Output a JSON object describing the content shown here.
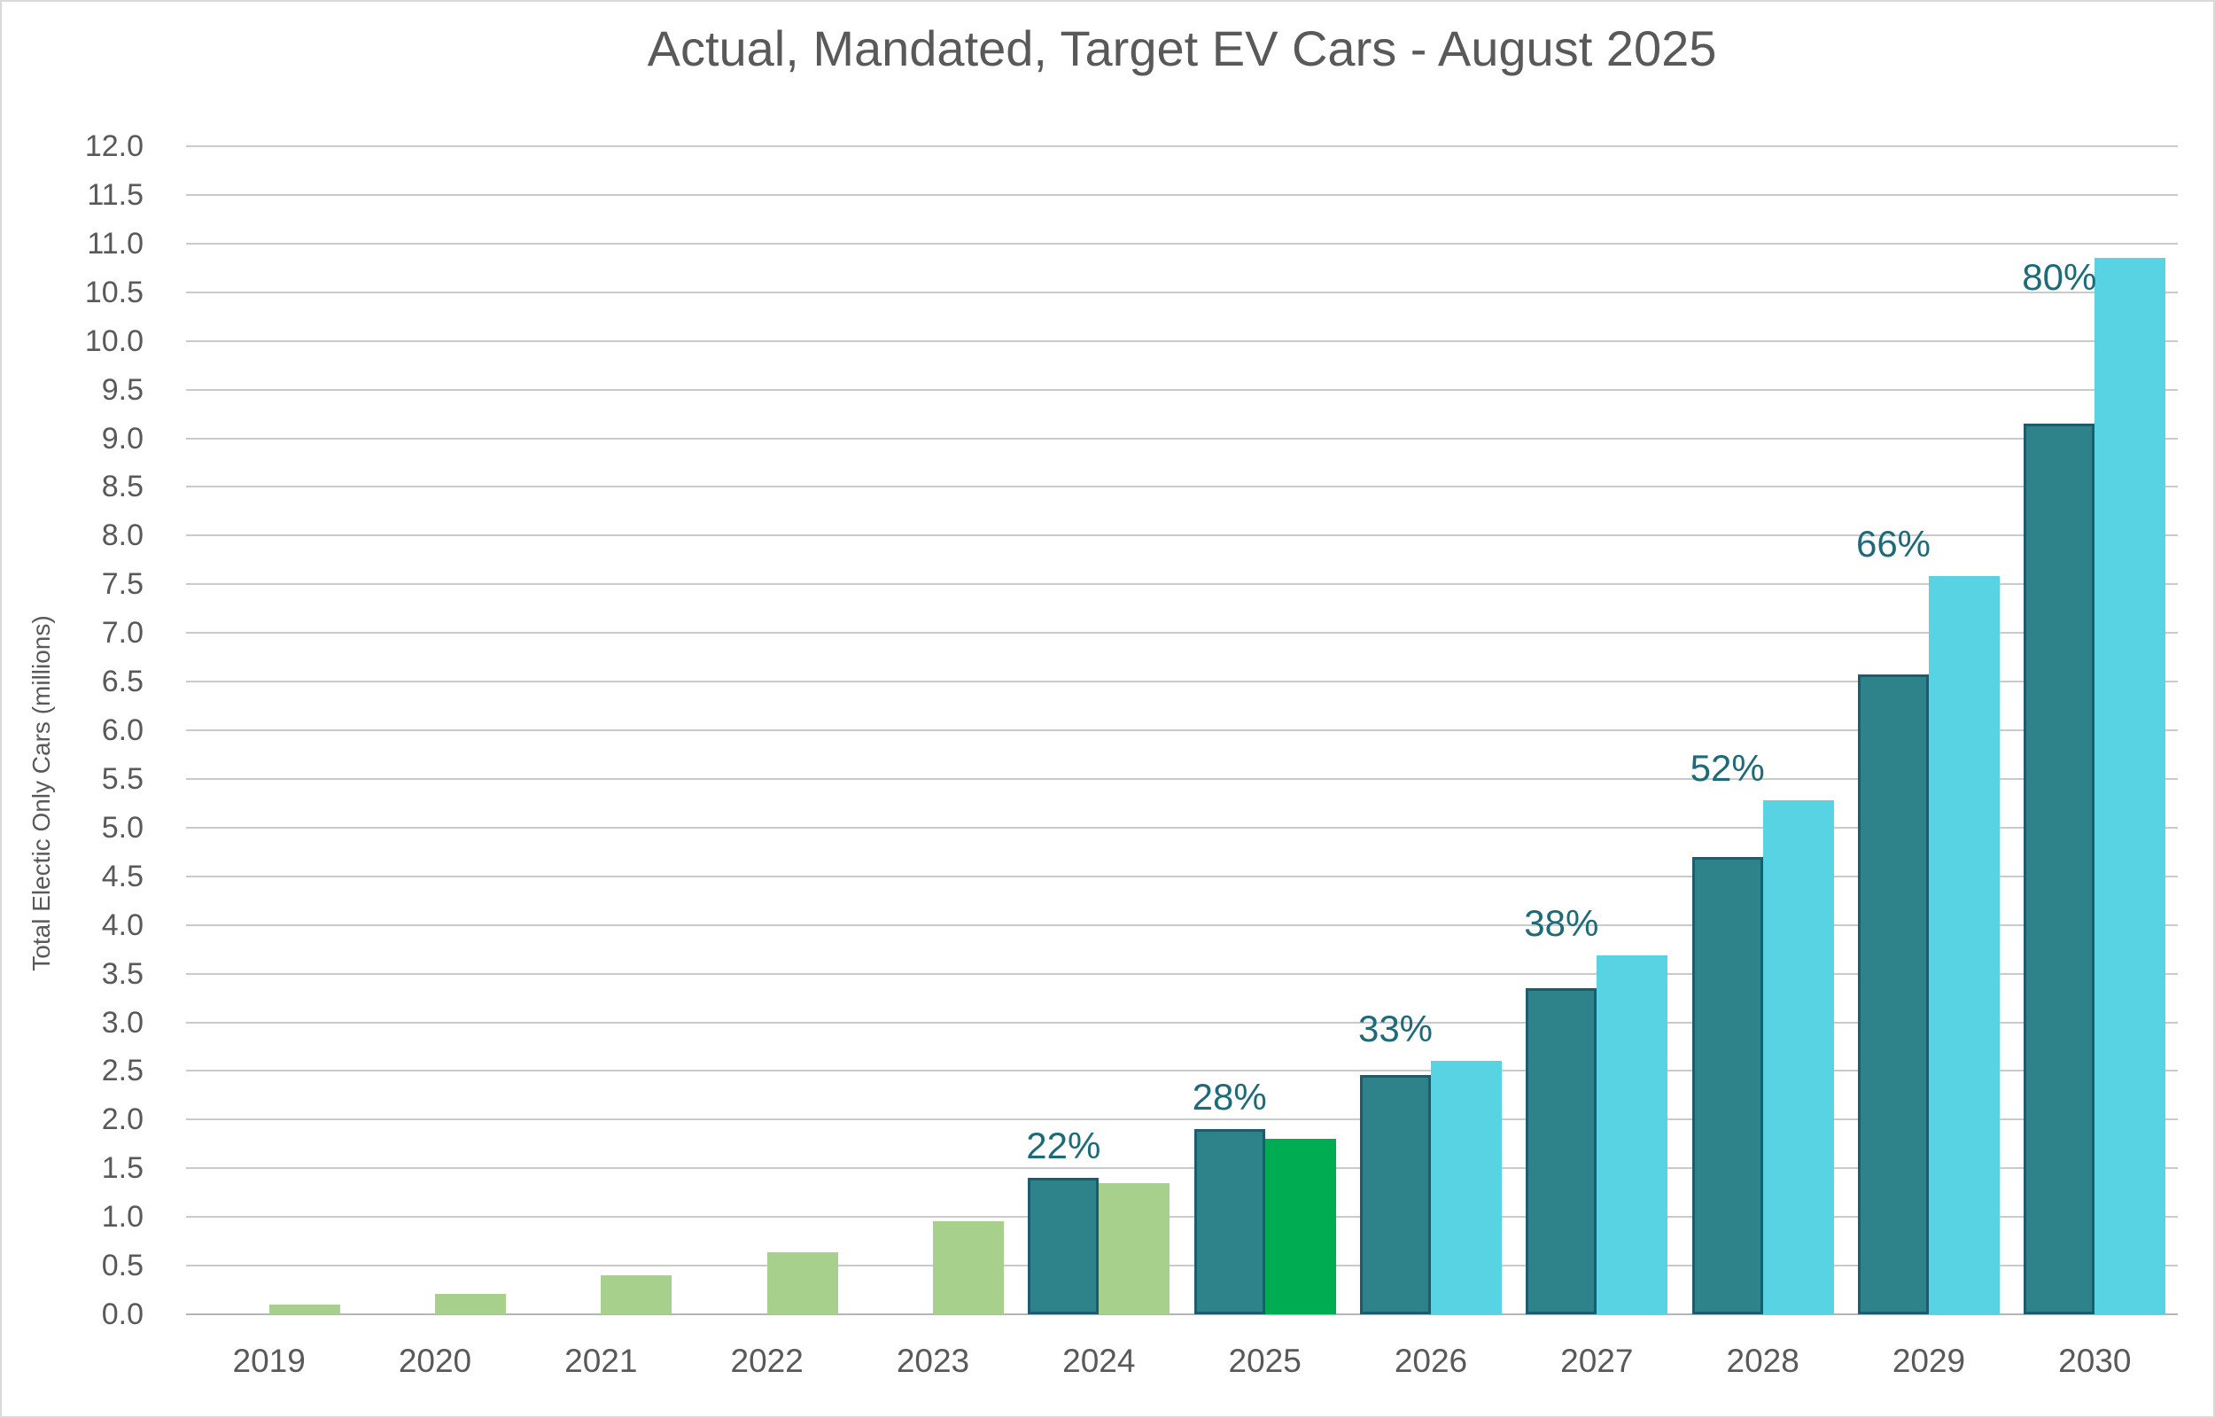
{
  "chart_data": {
    "type": "bar",
    "title": "Actual, Mandated, Target EV Cars - August 2025",
    "ylabel": "Total Electic Only Cars (millions)",
    "ylim": [
      0,
      12
    ],
    "grid": "horizontal",
    "legend": "none",
    "ytick_labels": [
      "0.0",
      "0.5",
      "1.0",
      "1.5",
      "2.0",
      "2.5",
      "3.0",
      "3.5",
      "4.0",
      "4.5",
      "5.0",
      "5.5",
      "6.0",
      "6.5",
      "7.0",
      "7.5",
      "8.0",
      "8.5",
      "9.0",
      "9.5",
      "10.0",
      "10.5",
      "11.0",
      "11.5",
      "12.0"
    ],
    "categories": [
      "2019",
      "2020",
      "2021",
      "2022",
      "2023",
      "2024",
      "2025",
      "2026",
      "2027",
      "2028",
      "2029",
      "2030"
    ],
    "series": [
      {
        "name": "Actual",
        "slot": "right",
        "color": "#a8d08d",
        "highlight_year": "2025",
        "highlight_color": "#00ac51",
        "values": [
          0.1,
          0.21,
          0.4,
          0.64,
          0.96,
          1.35,
          1.8,
          null,
          null,
          null,
          null,
          null
        ]
      },
      {
        "name": "Mandated",
        "slot": "left",
        "color": "#2e8289",
        "border_color": "#1a5d6f",
        "values": [
          null,
          null,
          null,
          null,
          null,
          1.4,
          1.9,
          2.46,
          3.35,
          4.7,
          6.57,
          9.15
        ]
      },
      {
        "name": "Target",
        "slot": "right",
        "color": "#58d3e3",
        "values": [
          null,
          null,
          null,
          null,
          null,
          null,
          null,
          2.6,
          3.69,
          5.28,
          7.58,
          10.85
        ]
      }
    ],
    "pct_labels": [
      null,
      null,
      null,
      null,
      null,
      "22%",
      "28%",
      "33%",
      "38%",
      "52%",
      "66%",
      "80%"
    ],
    "colors": {
      "text_gray": "#595959",
      "gridline": "#c9cbcb",
      "axis_line": "#b5b5b5",
      "pct_label": "#1d6b79",
      "frame_border": "#d9d9d9"
    }
  }
}
